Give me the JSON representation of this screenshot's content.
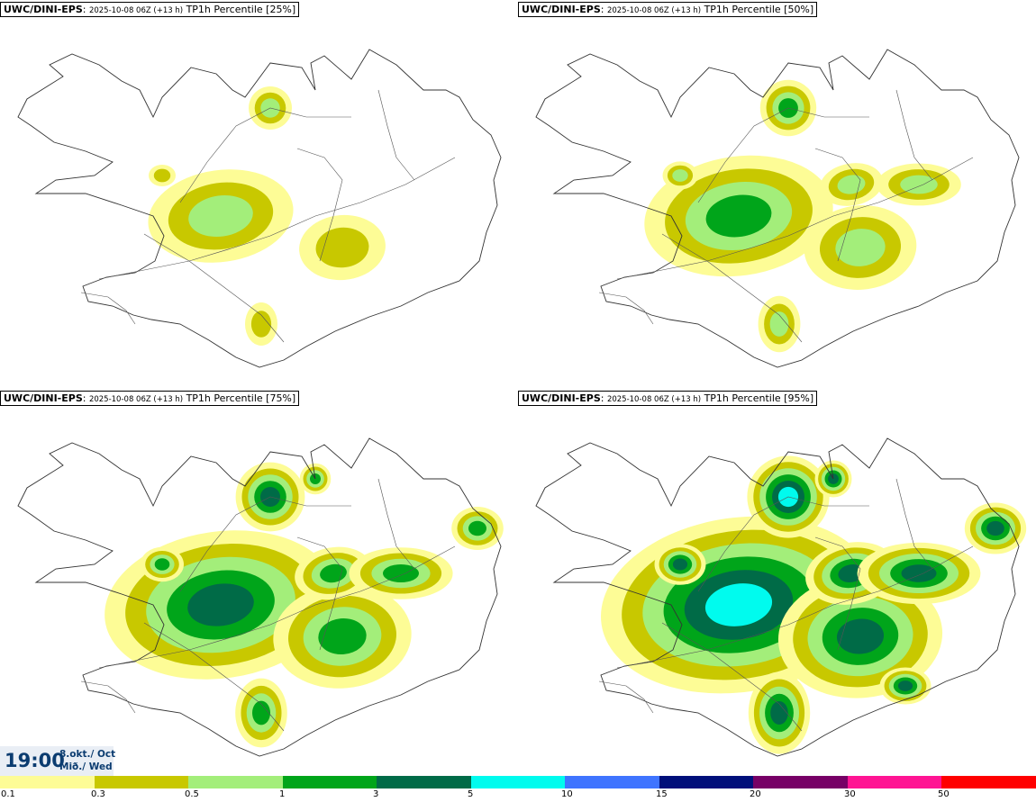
{
  "panels": [
    {
      "model": "UWC/DINI-EPS",
      "run": "2025-10-08 06Z (+13 h)",
      "field": "TP1h Percentile [25%]",
      "level": 0
    },
    {
      "model": "UWC/DINI-EPS",
      "run": "2025-10-08 06Z (+13 h)",
      "field": "TP1h Percentile [50%]",
      "level": 1
    },
    {
      "model": "UWC/DINI-EPS",
      "run": "2025-10-08 06Z (+13 h)",
      "field": "TP1h Percentile [75%]",
      "level": 2
    },
    {
      "model": "UWC/DINI-EPS",
      "run": "2025-10-08 06Z (+13 h)",
      "field": "TP1h Percentile [95%]",
      "level": 3
    }
  ],
  "time_box": {
    "time": "19:00",
    "date_line1": "8.okt./ Oct",
    "date_line2": "Mið./ Wed"
  },
  "legend": {
    "colors": [
      "#fdfc96",
      "#c8c800",
      "#a3ee7a",
      "#00a51a",
      "#006b47",
      "#00fbee",
      "#3f74ff",
      "#000f7a",
      "#770066",
      "#ff1493",
      "#ff0000"
    ],
    "ticks": [
      "0.1",
      "0.3",
      "0.5",
      "1",
      "3",
      "5",
      "10",
      "15",
      "20",
      "30",
      "50"
    ]
  }
}
